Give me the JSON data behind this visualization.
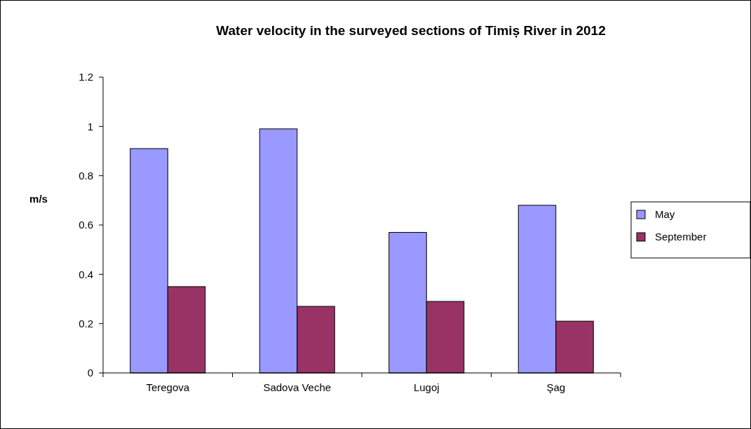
{
  "chart_data": {
    "type": "bar",
    "title": "Water velocity in the surveyed sections of Timiș River in 2012",
    "ylabel": "m/s",
    "categories": [
      "Teregova",
      "Sadova Veche",
      "Lugoj",
      "Şag"
    ],
    "series": [
      {
        "name": "May",
        "color": "#9999ff",
        "values": [
          0.91,
          0.99,
          0.57,
          0.68
        ]
      },
      {
        "name": "September",
        "color": "#993366",
        "values": [
          0.35,
          0.27,
          0.29,
          0.21
        ]
      }
    ],
    "ylim": [
      0,
      1.2
    ],
    "yticks": [
      0,
      0.2,
      0.4,
      0.6,
      0.8,
      1,
      1.2
    ],
    "grid": false,
    "legend": "right"
  }
}
